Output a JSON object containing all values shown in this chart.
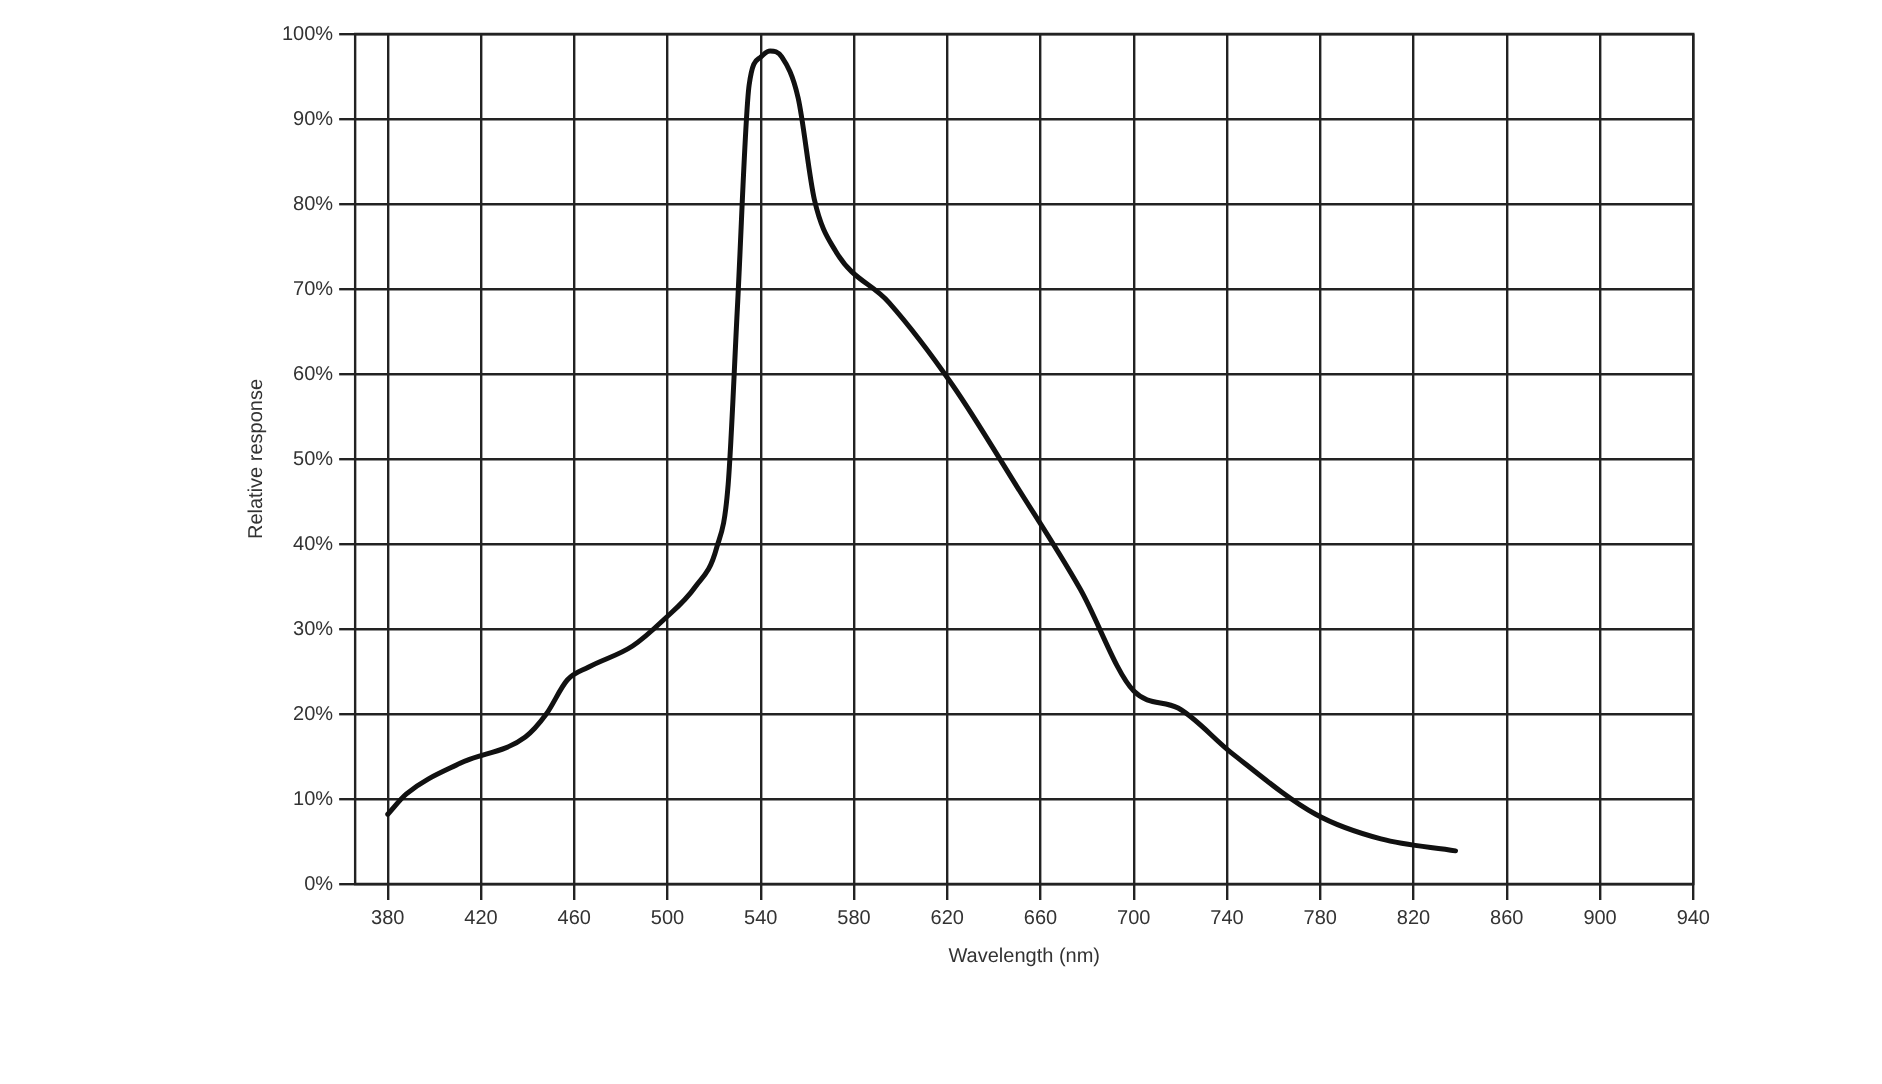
{
  "chart_data": {
    "type": "line",
    "xlabel": "Wavelength (nm)",
    "ylabel": "Relative response",
    "xlim": [
      366,
      940
    ],
    "xticks": [
      380,
      420,
      460,
      500,
      540,
      580,
      620,
      660,
      700,
      740,
      780,
      820,
      860,
      900,
      940
    ],
    "ylim": [
      0,
      100
    ],
    "yticks": [
      {
        "value": 0,
        "label": "0%"
      },
      {
        "value": 10,
        "label": "10%"
      },
      {
        "value": 20,
        "label": "20%"
      },
      {
        "value": 30,
        "label": "30%"
      },
      {
        "value": 40,
        "label": "40%"
      },
      {
        "value": 50,
        "label": "50%"
      },
      {
        "value": 60,
        "label": "60%"
      },
      {
        "value": 70,
        "label": "70%"
      },
      {
        "value": 80,
        "label": "80%"
      },
      {
        "value": 90,
        "label": "90%"
      },
      {
        "value": 100,
        "label": "100%"
      }
    ],
    "grid": true,
    "marker": "none",
    "line_style": "solid",
    "series": [
      {
        "color": "#111111",
        "x": [
          380,
          388,
          411,
          439,
          448,
          457,
          466,
          485,
          498,
          512,
          521,
          526,
          530,
          535,
          540,
          544,
          549,
          556,
          563,
          572,
          595,
          622,
          650,
          677,
          700,
          719,
          742,
          778,
          806,
          838
        ],
        "values": [
          8.2,
          10.6,
          14.2,
          17.3,
          20,
          24,
          25.5,
          28,
          31,
          35,
          39.5,
          47,
          68,
          94,
          97.3,
          98,
          97.3,
          92.5,
          80.5,
          74.5,
          68.4,
          58.8,
          46.7,
          34.7,
          22.7,
          20.7,
          15.4,
          8.2,
          5.3,
          3.9
        ]
      }
    ]
  }
}
